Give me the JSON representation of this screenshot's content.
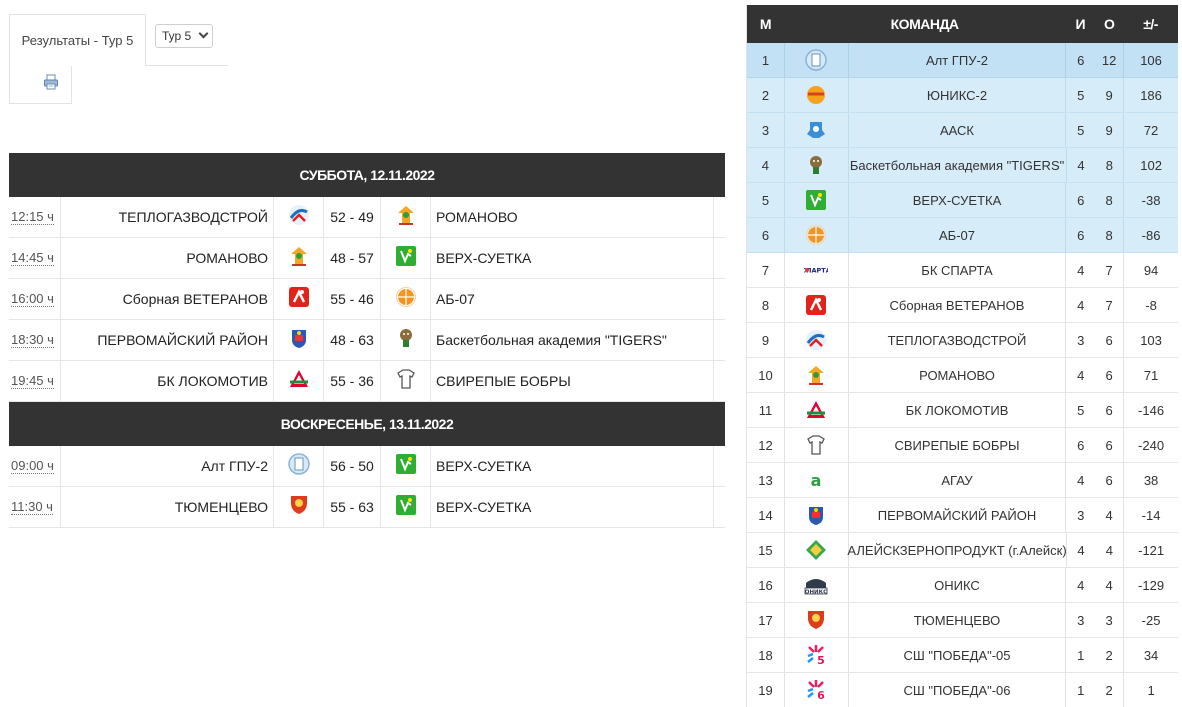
{
  "tab": {
    "label": "Результаты - Тур 5"
  },
  "round_select": {
    "value": "Тур 5"
  },
  "schedule": [
    {
      "day": "СУББОТА, 12.11.2022",
      "matches": [
        {
          "time": "12:15 ч",
          "home": "ТЕПЛОГАЗВОДСТРОЙ",
          "home_icon": "teplogaz-logo",
          "score": "52 - 49",
          "away": "РОМАНОВО",
          "away_icon": "romanovo-logo"
        },
        {
          "time": "14:45 ч",
          "home": "РОМАНОВО",
          "home_icon": "romanovo-logo",
          "score": "48 - 57",
          "away": "ВЕРХ-СУЕТКА",
          "away_icon": "verh-suetka-logo"
        },
        {
          "time": "16:00 ч",
          "home": "Сборная ВЕТЕРАНОВ",
          "home_icon": "veterans-logo",
          "score": "55 - 46",
          "away": "АБ-07",
          "away_icon": "ab07-logo"
        },
        {
          "time": "18:30 ч",
          "home": "ПЕРВОМАЙСКИЙ РАЙОН",
          "home_icon": "pervomaisky-logo",
          "score": "48 - 63",
          "away": "Баскетбольная академия \"TIGERS\"",
          "away_icon": "tigers-logo"
        },
        {
          "time": "19:45 ч",
          "home": "БК ЛОКОМОТИВ",
          "home_icon": "lokomotiv-logo",
          "score": "55 - 36",
          "away": "СВИРЕПЫЕ БОБРЫ",
          "away_icon": "bobry-logo"
        }
      ]
    },
    {
      "day": "ВОСКРЕСЕНЬЕ, 13.11.2022",
      "matches": [
        {
          "time": "09:00 ч",
          "home": "Алт ГПУ-2",
          "home_icon": "altgpu-logo",
          "score": "56 - 50",
          "away": "ВЕРХ-СУЕТКА",
          "away_icon": "verh-suetka-logo"
        },
        {
          "time": "11:30 ч",
          "home": "ТЮМЕНЦЕВО",
          "home_icon": "tyumentsevo-logo",
          "score": "55 - 63",
          "away": "ВЕРХ-СУЕТКА",
          "away_icon": "verh-suetka-logo"
        }
      ]
    }
  ],
  "standings": {
    "headers": {
      "pos": "М",
      "team": "КОМАНДА",
      "games": "И",
      "points": "О",
      "diff": "±/-"
    },
    "rows": [
      {
        "pos": "1",
        "team": "Алт ГПУ-2",
        "icon": "altgpu-logo",
        "games": "6",
        "points": "12",
        "diff": "106"
      },
      {
        "pos": "2",
        "team": "ЮНИКС-2",
        "icon": "uniks-logo",
        "games": "5",
        "points": "9",
        "diff": "186"
      },
      {
        "pos": "3",
        "team": "ААСК",
        "icon": "aask-logo",
        "games": "5",
        "points": "9",
        "diff": "72"
      },
      {
        "pos": "4",
        "team": "Баскетбольная академия \"TIGERS\"",
        "icon": "tigers-logo",
        "games": "4",
        "points": "8",
        "diff": "102"
      },
      {
        "pos": "5",
        "team": "ВЕРХ-СУЕТКА",
        "icon": "verh-suetka-logo",
        "games": "6",
        "points": "8",
        "diff": "-38"
      },
      {
        "pos": "6",
        "team": "АБ-07",
        "icon": "ab07-logo",
        "games": "6",
        "points": "8",
        "diff": "-86"
      },
      {
        "pos": "7",
        "team": "БК СПАРТА",
        "icon": "sparta-logo",
        "games": "4",
        "points": "7",
        "diff": "94"
      },
      {
        "pos": "8",
        "team": "Сборная ВЕТЕРАНОВ",
        "icon": "veterans-logo",
        "games": "4",
        "points": "7",
        "diff": "-8"
      },
      {
        "pos": "9",
        "team": "ТЕПЛОГАЗВОДСТРОЙ",
        "icon": "teplogaz-logo",
        "games": "3",
        "points": "6",
        "diff": "103"
      },
      {
        "pos": "10",
        "team": "РОМАНОВО",
        "icon": "romanovo-logo",
        "games": "4",
        "points": "6",
        "diff": "71"
      },
      {
        "pos": "11",
        "team": "БК ЛОКОМОТИВ",
        "icon": "lokomotiv-logo",
        "games": "5",
        "points": "6",
        "diff": "-146"
      },
      {
        "pos": "12",
        "team": "СВИРЕПЫЕ БОБРЫ",
        "icon": "bobry-logo",
        "games": "6",
        "points": "6",
        "diff": "-240"
      },
      {
        "pos": "13",
        "team": "АГАУ",
        "icon": "agau-logo",
        "games": "4",
        "points": "6",
        "diff": "38"
      },
      {
        "pos": "14",
        "team": "ПЕРВОМАЙСКИЙ РАЙОН",
        "icon": "pervomaisky-logo",
        "games": "3",
        "points": "4",
        "diff": "-14"
      },
      {
        "pos": "15",
        "team": "АЛЕЙСКЗЕРНОПРОДУКТ (г.Алейск)",
        "icon": "aleysk-logo",
        "games": "4",
        "points": "4",
        "diff": "-121"
      },
      {
        "pos": "16",
        "team": "ОНИКС",
        "icon": "oniks-logo",
        "games": "4",
        "points": "4",
        "diff": "-129"
      },
      {
        "pos": "17",
        "team": "ТЮМЕНЦЕВО",
        "icon": "tyumentsevo-logo",
        "games": "3",
        "points": "3",
        "diff": "-25"
      },
      {
        "pos": "18",
        "team": "СШ \"ПОБЕДА\"-05",
        "icon": "pobeda05-logo",
        "games": "1",
        "points": "2",
        "diff": "34"
      },
      {
        "pos": "19",
        "team": "СШ \"ПОБЕДА\"-06",
        "icon": "pobeda06-logo",
        "games": "1",
        "points": "2",
        "diff": "1"
      }
    ]
  },
  "colors": {
    "header_bg": "#333333",
    "leader_row": "#c2e1f5",
    "top_rows": "#d6ecf9"
  }
}
